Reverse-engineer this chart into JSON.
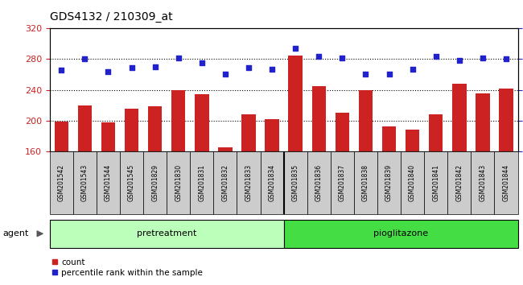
{
  "title": "GDS4132 / 210309_at",
  "samples": [
    "GSM201542",
    "GSM201543",
    "GSM201544",
    "GSM201545",
    "GSM201829",
    "GSM201830",
    "GSM201831",
    "GSM201832",
    "GSM201833",
    "GSM201834",
    "GSM201835",
    "GSM201836",
    "GSM201837",
    "GSM201838",
    "GSM201839",
    "GSM201840",
    "GSM201841",
    "GSM201842",
    "GSM201843",
    "GSM201844"
  ],
  "counts": [
    198,
    220,
    197,
    215,
    218,
    240,
    234,
    165,
    208,
    202,
    285,
    245,
    210,
    240,
    192,
    188,
    208,
    248,
    235,
    242
  ],
  "percentiles": [
    66,
    75,
    65,
    68,
    69,
    76,
    72,
    63,
    68,
    67,
    84,
    77,
    76,
    63,
    63,
    67,
    77,
    74,
    76,
    75
  ],
  "groups": [
    "pretreatment",
    "pretreatment",
    "pretreatment",
    "pretreatment",
    "pretreatment",
    "pretreatment",
    "pretreatment",
    "pretreatment",
    "pretreatment",
    "pretreatment",
    "pioglitazone",
    "pioglitazone",
    "pioglitazone",
    "pioglitazone",
    "pioglitazone",
    "pioglitazone",
    "pioglitazone",
    "pioglitazone",
    "pioglitazone",
    "pioglitazone"
  ],
  "ylim_left": [
    160,
    320
  ],
  "ylim_right": [
    0,
    100
  ],
  "yticks_left": [
    160,
    200,
    240,
    280,
    320
  ],
  "yticks_right": [
    0,
    25,
    50,
    75,
    100
  ],
  "bar_color": "#cc2222",
  "dot_color": "#2222cc",
  "pretreatment_color": "#bbffbb",
  "pioglitazone_color": "#44dd44",
  "cell_color": "#cccccc",
  "title_color": "#000000",
  "left_label_color": "#cc2222",
  "right_label_color": "#2222cc",
  "legend_count_label": "count",
  "legend_pct_label": "percentile rank within the sample",
  "agent_label": "agent",
  "group_split": 10,
  "grid_lines": [
    200,
    240,
    280
  ]
}
